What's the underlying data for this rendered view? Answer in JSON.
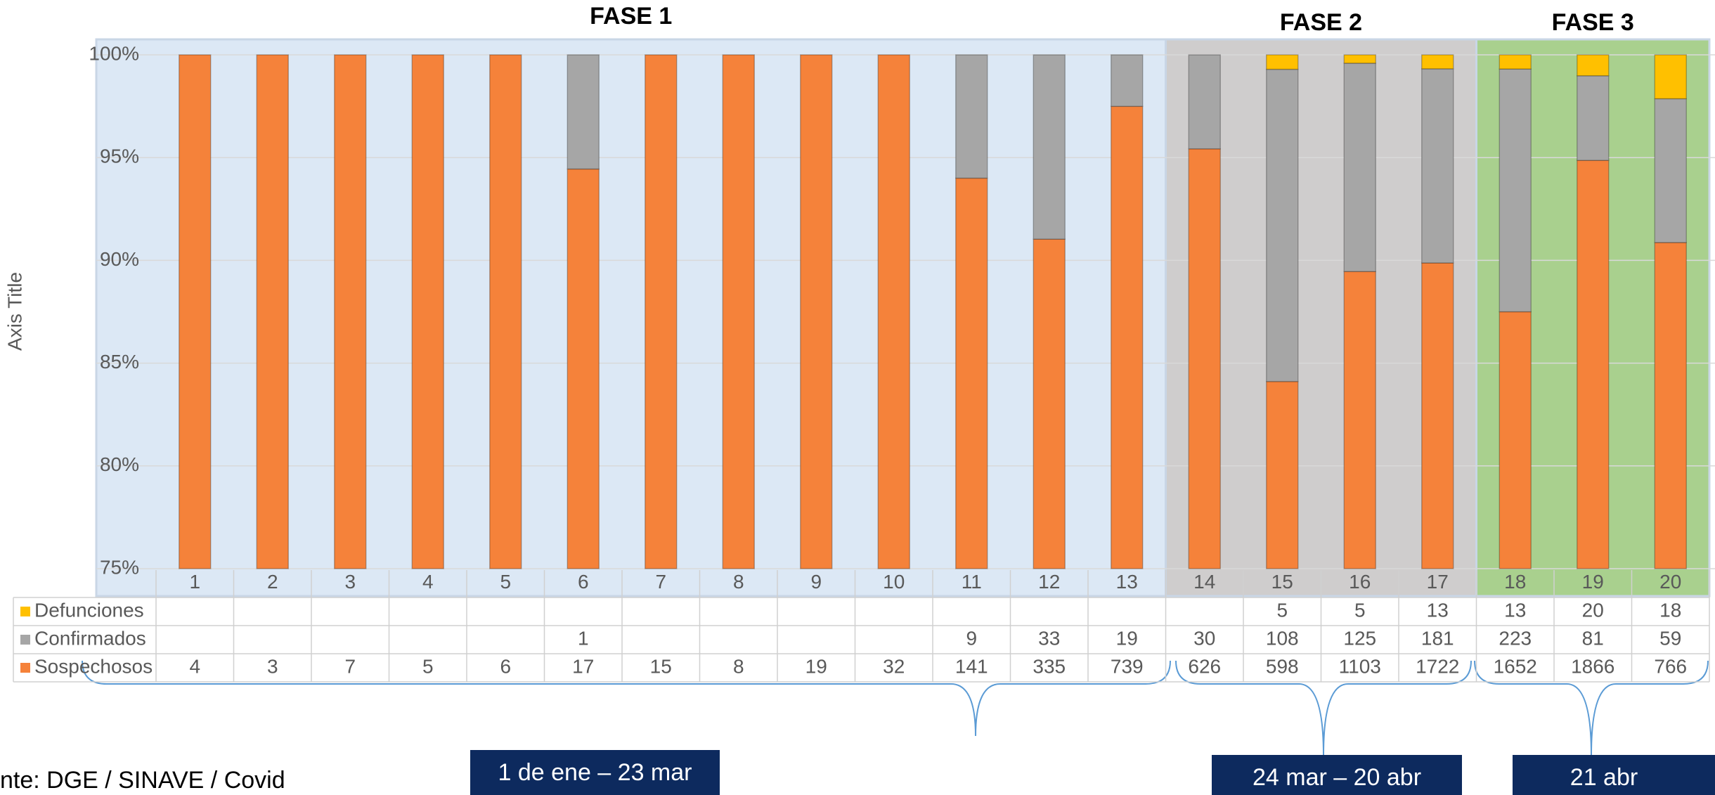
{
  "chart_data": {
    "type": "bar",
    "stacking": "percent",
    "y_axis_title": "Axis Title",
    "categories": [
      "1",
      "2",
      "3",
      "4",
      "5",
      "6",
      "7",
      "8",
      "9",
      "10",
      "11",
      "12",
      "13",
      "14",
      "15",
      "16",
      "17",
      "18",
      "19",
      "20"
    ],
    "series": [
      {
        "name": "Sospechosos",
        "color": "#f5823a",
        "values": [
          4,
          3,
          7,
          5,
          6,
          17,
          15,
          8,
          19,
          32,
          141,
          335,
          739,
          626,
          598,
          1103,
          1722,
          1652,
          1866,
          766
        ]
      },
      {
        "name": "Confirmados",
        "color": "#a6a6a6",
        "values": [
          null,
          null,
          null,
          null,
          null,
          1,
          null,
          null,
          null,
          null,
          9,
          33,
          19,
          30,
          108,
          125,
          181,
          223,
          81,
          59
        ]
      },
      {
        "name": "Defunciones",
        "color": "#ffc000",
        "values": [
          null,
          null,
          null,
          null,
          null,
          null,
          null,
          null,
          null,
          null,
          null,
          null,
          null,
          null,
          5,
          5,
          13,
          13,
          20,
          18
        ]
      }
    ],
    "ylim": [
      75,
      100
    ],
    "yticks": [
      {
        "value": 75,
        "label": "75%"
      },
      {
        "value": 80,
        "label": "80%"
      },
      {
        "value": 85,
        "label": "85%"
      },
      {
        "value": 90,
        "label": "90%"
      },
      {
        "value": 95,
        "label": "95%"
      },
      {
        "value": 100,
        "label": "100%"
      }
    ],
    "grid": true,
    "phases": [
      {
        "label": "FASE 1",
        "from": "1",
        "to": "13",
        "color": "#dce8f5",
        "period": "1 de ene – 23 mar"
      },
      {
        "label": "FASE 2",
        "from": "14",
        "to": "17",
        "color": "#cfcdcd",
        "period": "24 mar – 20 abr"
      },
      {
        "label": "FASE 3",
        "from": "18",
        "to": "20",
        "color": "#a9d08e",
        "period": "21 abr"
      }
    ],
    "source": "nte: DGE / SINAVE / Covid"
  }
}
